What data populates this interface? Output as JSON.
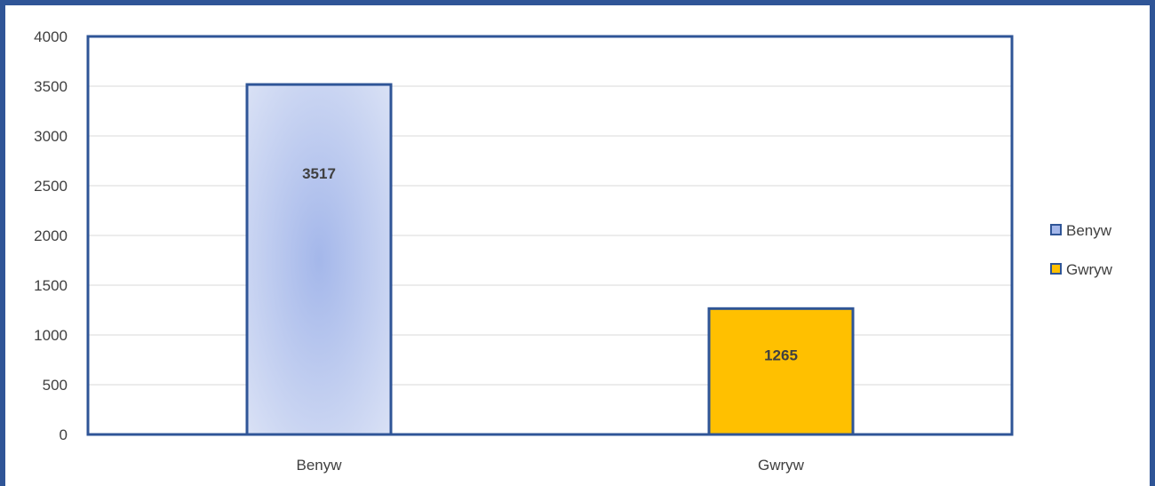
{
  "chart_data": {
    "type": "bar",
    "categories": [
      "Benyw",
      "Gwryw"
    ],
    "values": [
      3517,
      1265
    ],
    "ylim": [
      0,
      4000
    ],
    "yticks": [
      0,
      500,
      1000,
      1500,
      2000,
      2500,
      3000,
      3500,
      4000
    ],
    "grid": true,
    "legend": {
      "position": "right",
      "entries": [
        "Benyw",
        "Gwryw"
      ]
    },
    "data_labels": [
      "3517",
      "1265"
    ],
    "colors": {
      "benyw_light": "#dde4f6",
      "benyw_center": "#a4b7ea",
      "gwryw": "#ffc000",
      "border": "#2f5597",
      "gridline": "#d9d9d9",
      "text": "#404040"
    }
  }
}
